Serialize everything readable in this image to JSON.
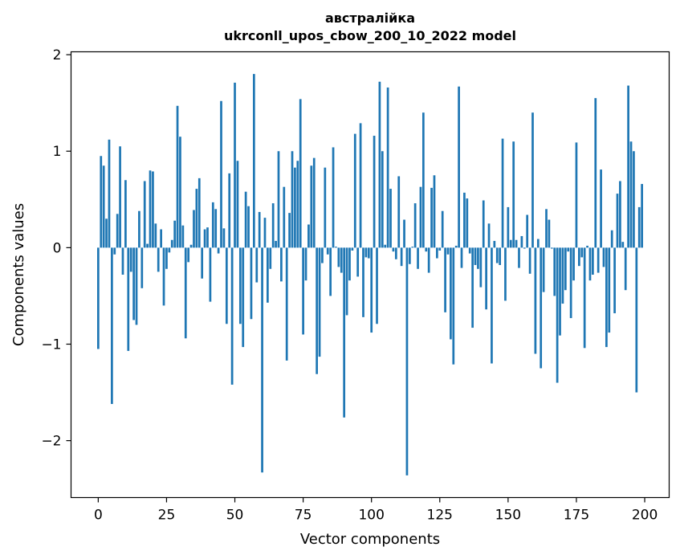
{
  "chart_data": {
    "type": "bar",
    "title": "австралійка",
    "subtitle": "ukrconll_upos_cbow_200_10_2022 model",
    "xlabel": "Vector components",
    "ylabel": "Components values",
    "xlim": [
      -9.95,
      208.95
    ],
    "ylim": [
      -2.59,
      2.03
    ],
    "xticks": [
      0,
      25,
      50,
      75,
      100,
      125,
      150,
      175,
      200
    ],
    "xtick_labels": [
      "0",
      "25",
      "50",
      "75",
      "100",
      "125",
      "150",
      "175",
      "200"
    ],
    "yticks": [
      -2,
      -1,
      0,
      1,
      2
    ],
    "ytick_labels": [
      "−2",
      "−1",
      "0",
      "1",
      "2"
    ],
    "grid": false,
    "bar_color": "#1f77b4",
    "x": [
      0,
      1,
      2,
      3,
      4,
      5,
      6,
      7,
      8,
      9,
      10,
      11,
      12,
      13,
      14,
      15,
      16,
      17,
      18,
      19,
      20,
      21,
      22,
      23,
      24,
      25,
      26,
      27,
      28,
      29,
      30,
      31,
      32,
      33,
      34,
      35,
      36,
      37,
      38,
      39,
      40,
      41,
      42,
      43,
      44,
      45,
      46,
      47,
      48,
      49,
      50,
      51,
      52,
      53,
      54,
      55,
      56,
      57,
      58,
      59,
      60,
      61,
      62,
      63,
      64,
      65,
      66,
      67,
      68,
      69,
      70,
      71,
      72,
      73,
      74,
      75,
      76,
      77,
      78,
      79,
      80,
      81,
      82,
      83,
      84,
      85,
      86,
      87,
      88,
      89,
      90,
      91,
      92,
      93,
      94,
      95,
      96,
      97,
      98,
      99,
      100,
      101,
      102,
      103,
      104,
      105,
      106,
      107,
      108,
      109,
      110,
      111,
      112,
      113,
      114,
      115,
      116,
      117,
      118,
      119,
      120,
      121,
      122,
      123,
      124,
      125,
      126,
      127,
      128,
      129,
      130,
      131,
      132,
      133,
      134,
      135,
      136,
      137,
      138,
      139,
      140,
      141,
      142,
      143,
      144,
      145,
      146,
      147,
      148,
      149,
      150,
      151,
      152,
      153,
      154,
      155,
      156,
      157,
      158,
      159,
      160,
      161,
      162,
      163,
      164,
      165,
      166,
      167,
      168,
      169,
      170,
      171,
      172,
      173,
      174,
      175,
      176,
      177,
      178,
      179,
      180,
      181,
      182,
      183,
      184,
      185,
      186,
      187,
      188,
      189,
      190,
      191,
      192,
      193,
      194,
      195,
      196,
      197,
      198,
      199
    ],
    "values": [
      -1.05,
      0.95,
      0.85,
      0.3,
      1.12,
      -1.62,
      -0.07,
      0.35,
      1.05,
      -0.28,
      0.7,
      -1.07,
      -0.25,
      -0.75,
      -0.8,
      0.38,
      -0.42,
      0.69,
      0.04,
      0.8,
      0.79,
      0.25,
      -0.25,
      0.19,
      -0.6,
      -0.22,
      -0.05,
      0.08,
      0.28,
      1.47,
      1.15,
      0.23,
      -0.94,
      -0.15,
      0.03,
      0.39,
      0.61,
      0.72,
      -0.32,
      0.19,
      0.21,
      -0.56,
      0.47,
      0.4,
      -0.06,
      1.52,
      0.2,
      -0.79,
      0.77,
      -1.42,
      1.71,
      0.9,
      -0.79,
      -1.03,
      0.58,
      0.43,
      -0.74,
      1.8,
      -0.36,
      0.37,
      -2.33,
      0.31,
      -0.57,
      -0.22,
      0.46,
      0.07,
      1.0,
      -0.35,
      0.63,
      -1.17,
      0.36,
      1.0,
      0.83,
      0.9,
      1.54,
      -0.9,
      -0.34,
      0.24,
      0.85,
      0.93,
      -1.31,
      -1.13,
      -0.16,
      0.83,
      -0.07,
      -0.5,
      1.04,
      0.01,
      -0.2,
      -0.26,
      -1.76,
      -0.7,
      -0.34,
      -0.03,
      1.18,
      -0.3,
      1.29,
      -0.72,
      -0.1,
      -0.11,
      -0.88,
      1.16,
      -0.79,
      1.72,
      1.0,
      0.03,
      1.66,
      0.61,
      -0.04,
      -0.12,
      0.74,
      -0.19,
      0.29,
      -2.36,
      -0.17,
      0.01,
      0.46,
      -0.22,
      0.63,
      1.4,
      -0.04,
      -0.26,
      0.62,
      0.75,
      -0.11,
      -0.03,
      0.38,
      -0.67,
      -0.07,
      -0.95,
      -1.21,
      0.02,
      1.67,
      -0.21,
      0.57,
      0.51,
      -0.06,
      -0.83,
      -0.18,
      -0.22,
      -0.41,
      0.49,
      -0.64,
      0.25,
      -1.2,
      0.07,
      -0.16,
      -0.18,
      1.13,
      -0.55,
      0.42,
      0.08,
      1.1,
      0.08,
      -0.21,
      0.12,
      -0.01,
      0.34,
      -0.27,
      1.4,
      -1.1,
      0.09,
      -1.25,
      -0.46,
      0.4,
      0.29,
      -0.01,
      -0.5,
      -1.4,
      -0.91,
      -0.58,
      -0.44,
      -0.04,
      -0.73,
      -0.34,
      1.09,
      -0.19,
      -0.1,
      -1.04,
      0.02,
      -0.34,
      -0.28,
      1.55,
      -0.26,
      0.81,
      -0.2,
      -1.03,
      -0.88,
      0.18,
      -0.68,
      0.56,
      0.69,
      0.06,
      -0.44,
      1.68,
      1.1,
      1.0,
      -1.5,
      0.42,
      0.66
    ]
  }
}
